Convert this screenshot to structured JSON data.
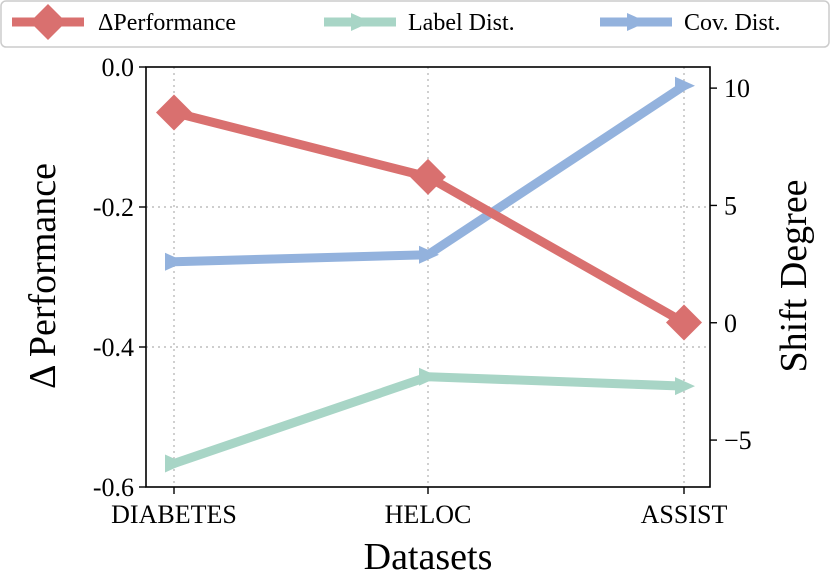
{
  "chart_data": {
    "type": "line",
    "xlabel": "Datasets",
    "ylabel": "Δ Performance",
    "y2label": "Shift Degree",
    "categories": [
      "DIABETES",
      "HELOC",
      "ASSIST"
    ],
    "ylim": [
      -0.6,
      0.0
    ],
    "y2lim": [
      -7,
      10.9
    ],
    "yticks": [
      "0.0",
      "-0.2",
      "-0.4",
      "-0.6"
    ],
    "y2ticks": [
      "10",
      "5",
      "0",
      "−5"
    ],
    "grid": true,
    "legend_position": "top",
    "series": [
      {
        "name": "ΔPerformance",
        "axis": "left",
        "marker": "diamond",
        "color": "#d9706f",
        "values": [
          -0.065,
          -0.157,
          -0.365
        ]
      },
      {
        "name": "Label Dist.",
        "axis": "right",
        "marker": "triangle-right",
        "color": "#a8d5c6",
        "values": [
          -6.0,
          -2.3,
          -2.7
        ]
      },
      {
        "name": "Cov. Dist.",
        "axis": "right",
        "marker": "triangle-right",
        "color": "#93b2dd",
        "values": [
          2.6,
          2.9,
          10.1
        ]
      }
    ]
  }
}
